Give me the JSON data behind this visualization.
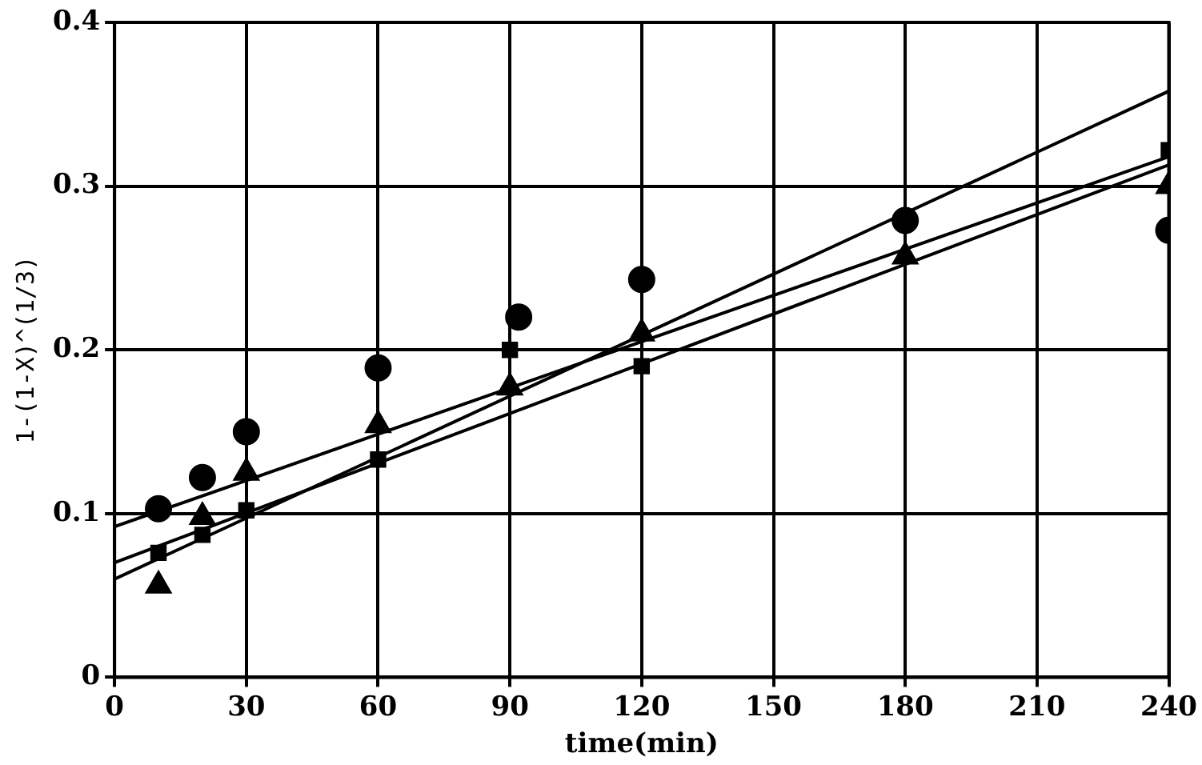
{
  "chart_data": {
    "type": "scatter",
    "xlabel": "time(min)",
    "ylabel": "1-(1-X)^(1/3)",
    "xlim": [
      0,
      240
    ],
    "xticks": [
      0,
      30,
      60,
      90,
      120,
      150,
      180,
      210,
      240
    ],
    "ylim": [
      0,
      0.4
    ],
    "yticks": [
      0,
      0.1,
      0.2,
      0.3,
      0.4
    ],
    "grid": true,
    "legend": false,
    "series": [
      {
        "marker": "circle",
        "color": "#000000",
        "x": [
          10,
          20,
          30,
          60,
          92,
          120,
          180,
          240
        ],
        "values": [
          0.103,
          0.122,
          0.15,
          0.189,
          0.22,
          0.243,
          0.279,
          0.273
        ]
      },
      {
        "marker": "square",
        "color": "#000000",
        "x": [
          10,
          20,
          30,
          60,
          90,
          120,
          180,
          240
        ],
        "values": [
          0.076,
          0.087,
          0.102,
          0.133,
          0.2,
          0.19,
          null,
          0.322
        ]
      },
      {
        "marker": "triangle",
        "color": "#000000",
        "x": [
          10,
          20,
          30,
          60,
          90,
          120,
          180,
          240
        ],
        "values": [
          0.056,
          0.098,
          0.125,
          0.154,
          0.177,
          0.21,
          0.257,
          0.3
        ]
      },
      {
        "type": "line",
        "marker": "none",
        "color": "#000000",
        "x": [
          0,
          240
        ],
        "values": [
          0.06,
          0.358
        ]
      },
      {
        "type": "line",
        "marker": "none",
        "color": "#000000",
        "x": [
          0,
          240
        ],
        "values": [
          0.092,
          0.318
        ]
      },
      {
        "type": "line",
        "marker": "none",
        "color": "#000000",
        "x": [
          0,
          240
        ],
        "values": [
          0.07,
          0.313
        ]
      }
    ]
  }
}
